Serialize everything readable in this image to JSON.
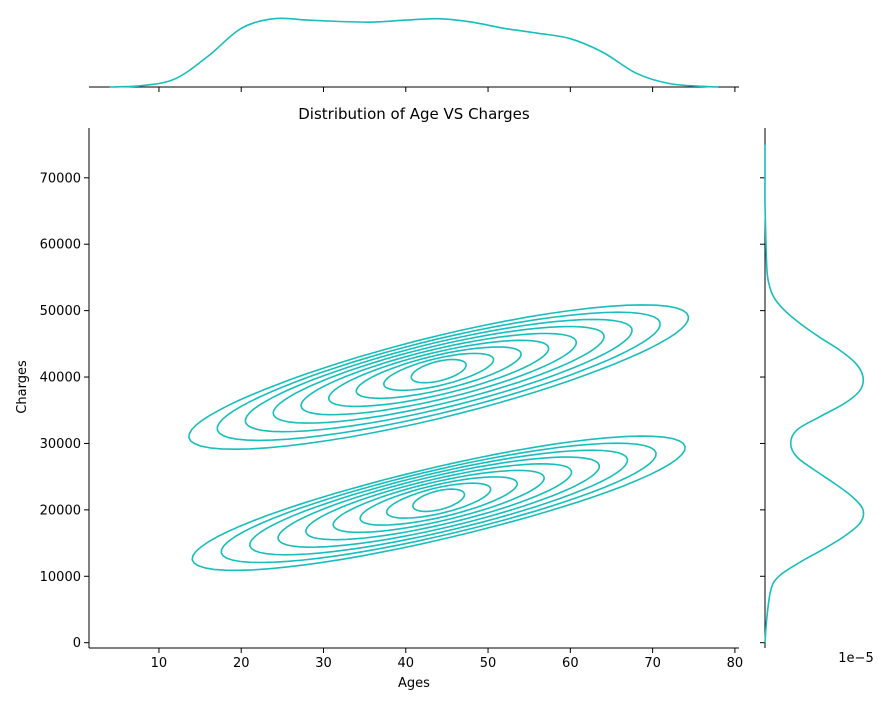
{
  "chart_data": {
    "type": "kde-jointplot",
    "title": "Distribution of Age VS Charges",
    "xlabel": "Ages",
    "ylabel": "Charges",
    "xlim": [
      1.5,
      80.5
    ],
    "ylim": [
      -800,
      77500
    ],
    "x_ticks": [
      10,
      20,
      30,
      40,
      50,
      60,
      70,
      80
    ],
    "y_ticks": [
      0,
      10000,
      20000,
      30000,
      40000,
      50000,
      60000,
      70000
    ],
    "y_marginal_offset_label": "1e−5",
    "color": "#17bebb",
    "grid": false,
    "legend": "none",
    "contour_levels": 9,
    "clusters": [
      {
        "center_age": 44,
        "center_charges": 40000,
        "peak_age": 44,
        "peak_charges": 41000,
        "age_range": [
          10,
          70
        ],
        "charges_range": [
          28500,
          54000
        ]
      },
      {
        "center_age": 44,
        "center_charges": 21000,
        "peak_age": 44,
        "peak_charges": 21500,
        "age_range": [
          11,
          67
        ],
        "charges_range": [
          9000,
          33000
        ]
      }
    ],
    "marginal_x": {
      "x": [
        4,
        8,
        12,
        16,
        20,
        24,
        28,
        32,
        36,
        40,
        44,
        48,
        52,
        56,
        60,
        64,
        68,
        72,
        76,
        78
      ],
      "density": [
        0.0,
        0.02,
        0.12,
        0.45,
        0.85,
        0.99,
        0.97,
        0.95,
        0.94,
        0.97,
        0.99,
        0.94,
        0.85,
        0.78,
        0.7,
        0.5,
        0.2,
        0.05,
        0.01,
        0.0
      ]
    },
    "marginal_y": {
      "charges": [
        0,
        4000,
        8000,
        10000,
        12000,
        14000,
        16000,
        18000,
        20000,
        22000,
        24000,
        26000,
        28000,
        30000,
        32000,
        34000,
        36000,
        38000,
        40000,
        42000,
        44000,
        46000,
        48000,
        50000,
        52000,
        54000,
        56000,
        60000,
        66000,
        70000,
        75000
      ],
      "density": [
        0.0,
        0.02,
        0.06,
        0.14,
        0.34,
        0.58,
        0.8,
        0.96,
        0.99,
        0.88,
        0.7,
        0.5,
        0.32,
        0.26,
        0.32,
        0.55,
        0.8,
        0.96,
        0.99,
        0.92,
        0.76,
        0.55,
        0.36,
        0.2,
        0.09,
        0.04,
        0.02,
        0.01,
        0.0,
        0.0,
        0.0
      ]
    }
  }
}
